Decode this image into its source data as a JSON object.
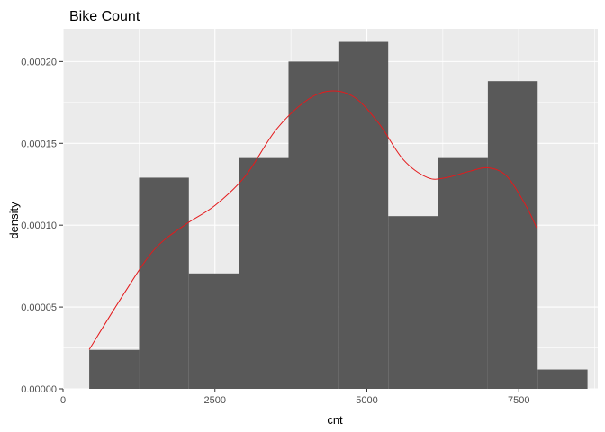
{
  "chart_data": {
    "type": "bar",
    "title": "Bike Count",
    "xlabel": "cnt",
    "ylabel": "density",
    "xlim": [
      0,
      8800
    ],
    "ylim": [
      0,
      0.00022
    ],
    "x_ticks": [
      0,
      2500,
      5000,
      7500
    ],
    "x_tick_labels": [
      "0",
      "2500",
      "5000",
      "7500"
    ],
    "y_ticks": [
      0,
      5e-05,
      0.0001,
      0.00015,
      0.0002
    ],
    "y_tick_labels": [
      "0.00000",
      "0.00005",
      "0.00010",
      "0.00015",
      "0.00020"
    ],
    "grid": true,
    "colors": {
      "panel": "#ebebeb",
      "grid": "#ffffff",
      "bars": "#595959",
      "density_line": "#e41a1c"
    },
    "bins": [
      {
        "x0": 431,
        "x1": 1251,
        "density": 2.38e-05
      },
      {
        "x0": 1251,
        "x2": null,
        "x1": 2071,
        "density": 0.000129
      },
      {
        "x0": 2071,
        "x1": 2891,
        "density": 7.05e-05
      },
      {
        "x0": 2891,
        "x1": 3711,
        "density": 0.000141
      },
      {
        "x0": 3711,
        "x1": 4531,
        "density": 0.0002
      },
      {
        "x0": 4531,
        "x1": 5351,
        "density": 0.000212
      },
      {
        "x0": 5351,
        "x1": 6171,
        "density": 0.0001055
      },
      {
        "x0": 6171,
        "x1": 6991,
        "density": 0.000141
      },
      {
        "x0": 6991,
        "x1": 7811,
        "density": 0.000188
      },
      {
        "x0": 7811,
        "x1": 8631,
        "density": 1.18e-05
      }
    ],
    "density_curve": {
      "name": "density estimate",
      "x": [
        431,
        1000,
        1500,
        2000,
        2500,
        3000,
        3500,
        4000,
        4400,
        4800,
        5200,
        5600,
        6000,
        6300,
        6700,
        7000,
        7300,
        7600,
        7800
      ],
      "y": [
        2.4e-05,
        5.8e-05,
        8.5e-05,
        0.0001,
        0.000112,
        0.00013,
        0.000158,
        0.000176,
        0.000182,
        0.000178,
        0.000162,
        0.00014,
        0.000129,
        0.000129,
        0.000133,
        0.000135,
        0.00013,
        0.000113,
        9.8e-05
      ]
    }
  }
}
